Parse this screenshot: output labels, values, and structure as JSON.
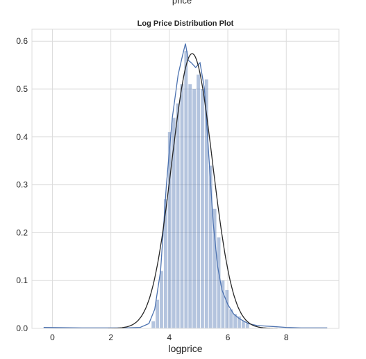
{
  "top_cut_label": "price",
  "chart_data": {
    "type": "bar",
    "title": "Log Price Distribution Plot",
    "xlabel": "logprice",
    "ylabel": "",
    "xlim": [
      -0.7,
      9.8
    ],
    "ylim": [
      0,
      0.625
    ],
    "xticks": [
      0,
      2,
      4,
      6,
      8
    ],
    "yticks": [
      0.0,
      0.1,
      0.2,
      0.3,
      0.4,
      0.5,
      0.6
    ],
    "grid": true,
    "colors": {
      "bars": "#4c72b0",
      "kde": "#4c72b0",
      "fit": "#262626",
      "grid": "#dcdcdc"
    },
    "histogram": {
      "bin_width": 0.14,
      "bins": [
        {
          "x": 3.38,
          "y": 0.015
        },
        {
          "x": 3.52,
          "y": 0.06
        },
        {
          "x": 3.66,
          "y": 0.12
        },
        {
          "x": 3.8,
          "y": 0.27
        },
        {
          "x": 3.94,
          "y": 0.41
        },
        {
          "x": 4.08,
          "y": 0.44
        },
        {
          "x": 4.22,
          "y": 0.47
        },
        {
          "x": 4.36,
          "y": 0.51
        },
        {
          "x": 4.5,
          "y": 0.58
        },
        {
          "x": 4.64,
          "y": 0.51
        },
        {
          "x": 4.78,
          "y": 0.5
        },
        {
          "x": 4.92,
          "y": 0.53
        },
        {
          "x": 5.06,
          "y": 0.5
        },
        {
          "x": 5.2,
          "y": 0.52
        },
        {
          "x": 5.34,
          "y": 0.34
        },
        {
          "x": 5.48,
          "y": 0.25
        },
        {
          "x": 5.62,
          "y": 0.19
        },
        {
          "x": 5.76,
          "y": 0.1
        },
        {
          "x": 5.9,
          "y": 0.08
        },
        {
          "x": 6.04,
          "y": 0.04
        },
        {
          "x": 6.18,
          "y": 0.03
        },
        {
          "x": 6.32,
          "y": 0.025
        },
        {
          "x": 6.46,
          "y": 0.015
        },
        {
          "x": 6.6,
          "y": 0.01
        }
      ]
    },
    "kde_line": {
      "x": [
        -0.3,
        1.0,
        2.5,
        3.0,
        3.3,
        3.5,
        3.7,
        3.9,
        4.1,
        4.3,
        4.45,
        4.55,
        4.65,
        4.75,
        4.9,
        5.05,
        5.2,
        5.35,
        5.5,
        5.65,
        5.8,
        6.0,
        6.2,
        6.4,
        6.7,
        7.0,
        7.5,
        8.0,
        8.5,
        9.0,
        9.4
      ],
      "y": [
        0.002,
        0.001,
        0.001,
        0.002,
        0.01,
        0.04,
        0.12,
        0.3,
        0.44,
        0.53,
        0.57,
        0.595,
        0.56,
        0.555,
        0.545,
        0.555,
        0.5,
        0.36,
        0.22,
        0.13,
        0.08,
        0.05,
        0.03,
        0.02,
        0.01,
        0.006,
        0.004,
        0.002,
        0.001,
        0.001,
        0.001
      ]
    },
    "fit_line": {
      "type": "normal",
      "mean": 4.78,
      "std": 0.695
    }
  }
}
